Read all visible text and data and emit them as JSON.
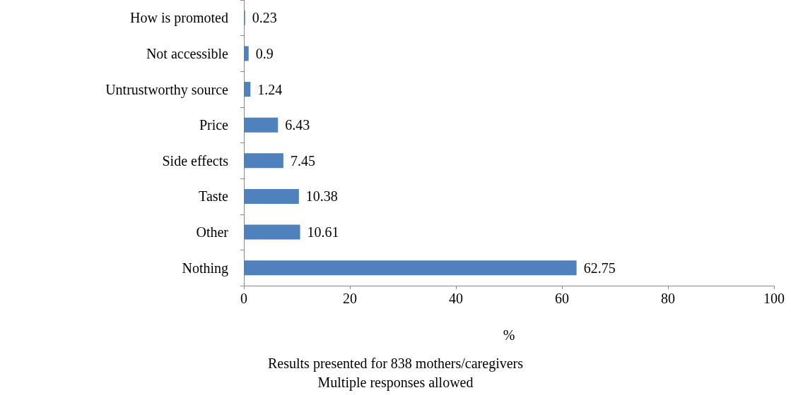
{
  "chart_data": {
    "type": "bar",
    "orientation": "horizontal",
    "categories": [
      "How is promoted",
      "Not accessible",
      "Untrustworthy source",
      "Price",
      "Side effects",
      "Taste",
      "Other",
      "Nothing"
    ],
    "values": [
      0.23,
      0.9,
      1.24,
      6.43,
      7.45,
      10.38,
      10.61,
      62.75
    ],
    "color": "#4f81bd",
    "xlim": [
      0,
      100
    ],
    "xticks": [
      0,
      20,
      40,
      60,
      80,
      100
    ],
    "xlabel": "%",
    "annotations": [
      "Results presented for 838 mothers/caregivers",
      "Multiple responses allowed"
    ],
    "data_labels": true,
    "grid": false
  }
}
